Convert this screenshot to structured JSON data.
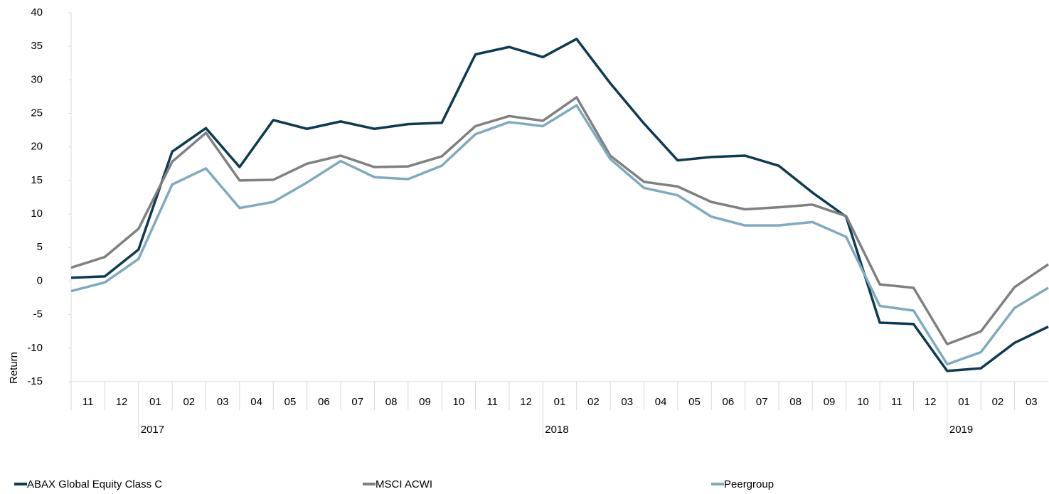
{
  "chart_data": {
    "type": "line",
    "y_label": "Return",
    "ylim": [
      -15,
      40
    ],
    "yticks": [
      -15,
      -10,
      -5,
      0,
      5,
      10,
      15,
      20,
      25,
      30,
      35,
      40
    ],
    "categories": [
      null,
      "11",
      "12",
      "01",
      "02",
      "03",
      "04",
      "05",
      "06",
      "07",
      "08",
      "09",
      "10",
      "11",
      "12",
      "01",
      "02",
      "03",
      "04",
      "05",
      "06",
      "07",
      "08",
      "09",
      "10",
      "11",
      "12",
      "01",
      "02",
      "03"
    ],
    "x_groups": [
      "2017",
      "2018",
      "2019"
    ],
    "series": [
      {
        "name": "ABAX Global Equity Class C",
        "color": "#0d3a52",
        "values": [
          0.5,
          0.7,
          4.7,
          19.3,
          22.8,
          17,
          24,
          22.7,
          23.8,
          22.7,
          23.4,
          23.6,
          33.8,
          34.9,
          33.4,
          36.1,
          29.5,
          23.5,
          18,
          18.5,
          18.7,
          17.2,
          13.2,
          9.6,
          -6.2,
          -6.4,
          -13.4,
          -13,
          -9.2,
          -6.8
        ]
      },
      {
        "name": "MSCI ACWI",
        "color": "#808080",
        "values": [
          2.0,
          3.6,
          7.8,
          17.8,
          22.1,
          15.0,
          15.1,
          17.5,
          18.7,
          17.0,
          17.1,
          18.6,
          23.1,
          24.6,
          23.9,
          27.4,
          18.7,
          14.8,
          14.1,
          11.8,
          10.7,
          11.0,
          11.4,
          9.7,
          -0.5,
          -1.0,
          -9.4,
          -7.5,
          -0.9,
          2.5
        ]
      },
      {
        "name": "Peergroup",
        "color": "#7faabf",
        "values": [
          -1.5,
          -0.2,
          3.3,
          14.4,
          16.8,
          10.9,
          11.8,
          14.7,
          17.9,
          15.5,
          15.2,
          17.2,
          21.9,
          23.7,
          23.1,
          26.2,
          18.2,
          13.9,
          12.8,
          9.6,
          8.3,
          8.3,
          8.8,
          6.6,
          -3.7,
          -4.4,
          -12.4,
          -10.6,
          -4.0,
          -1.0
        ]
      }
    ]
  }
}
